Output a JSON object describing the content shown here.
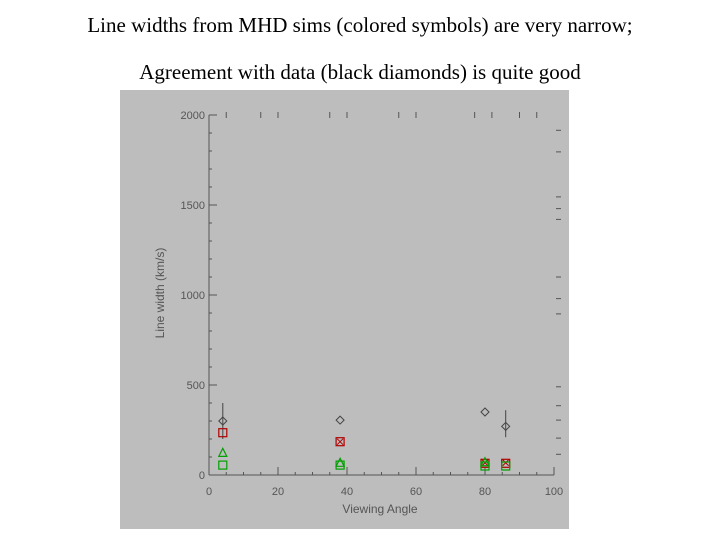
{
  "slide": {
    "caption_line1": "Line widths from MHD sims (colored symbols) are very narrow;",
    "caption_line2": "Agreement with data (black diamonds) is quite good"
  },
  "colors": {
    "background": "#bdbdbd",
    "axes": "#555555",
    "observed": "#444444",
    "red_series": "#b00000",
    "green_series": "#00a000"
  },
  "chart_data": {
    "type": "scatter",
    "xlabel": "Viewing Angle",
    "ylabel": "Line width (km/s)",
    "xlim": [
      0,
      100
    ],
    "ylim": [
      0,
      2000
    ],
    "xticks": [
      0,
      20,
      40,
      60,
      80,
      100
    ],
    "yticks": [
      0,
      500,
      1000,
      1500,
      2000
    ],
    "grid": false,
    "series": [
      {
        "marker": "diamond-open",
        "color": "#444444",
        "points": [
          {
            "x": 4,
            "y": 300,
            "err": [
              200,
              400
            ]
          },
          {
            "x": 38,
            "y": 305
          },
          {
            "x": 80,
            "y": 350
          },
          {
            "x": 86,
            "y": 270,
            "err": [
              210,
              360
            ]
          }
        ]
      },
      {
        "marker": "square-open",
        "color": "#b00000",
        "points": [
          {
            "x": 4,
            "y": 235
          },
          {
            "x": 38,
            "y": 185
          },
          {
            "x": 80,
            "y": 65
          },
          {
            "x": 86,
            "y": 65
          }
        ]
      },
      {
        "marker": "x-cross",
        "color": "#b00000",
        "points": [
          {
            "x": 38,
            "y": 185
          },
          {
            "x": 80,
            "y": 68
          },
          {
            "x": 86,
            "y": 68
          }
        ]
      },
      {
        "marker": "triangle-open",
        "color": "#00a000",
        "points": [
          {
            "x": 4,
            "y": 120
          },
          {
            "x": 38,
            "y": 65
          },
          {
            "x": 80,
            "y": 68
          }
        ]
      },
      {
        "marker": "square-open",
        "color": "#00a000",
        "points": [
          {
            "x": 4,
            "y": 55
          },
          {
            "x": 38,
            "y": 55
          },
          {
            "x": 80,
            "y": 50
          },
          {
            "x": 86,
            "y": 50
          }
        ]
      }
    ],
    "right_edge_marks_y": [
      1915,
      1795,
      1545,
      1480,
      1420,
      1100,
      980,
      895,
      490,
      385,
      305,
      205,
      115
    ],
    "top_edge_marks_x": [
      5,
      15,
      20,
      35,
      40,
      55,
      60,
      77,
      82,
      90,
      95
    ]
  }
}
